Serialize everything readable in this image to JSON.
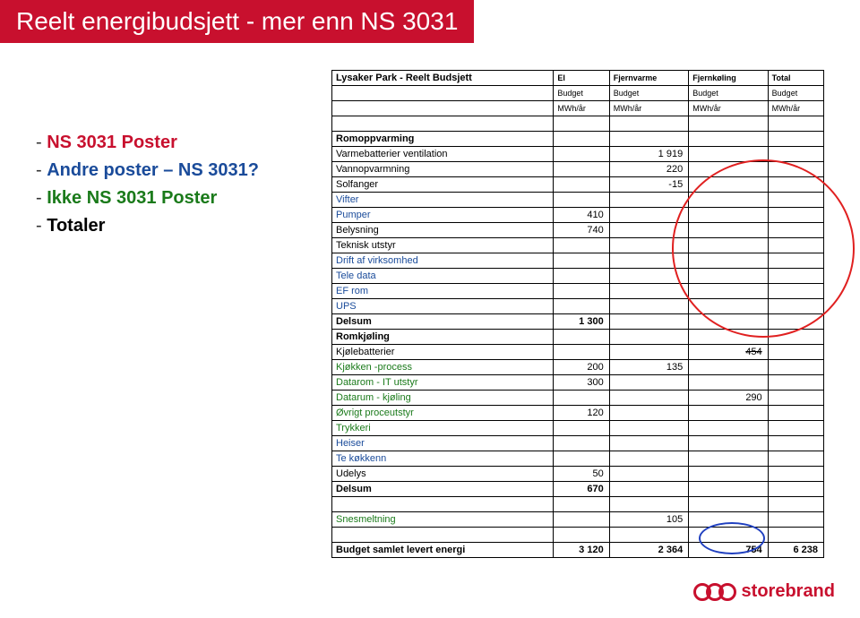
{
  "title": "Reelt energibudsjett - mer enn NS 3031",
  "bullets": [
    {
      "dash": "-",
      "text": "NS 3031 Poster",
      "cls": "b-red"
    },
    {
      "dash": "-",
      "text": "Andre poster – NS 3031?",
      "cls": "b-blue"
    },
    {
      "dash": "-",
      "text": "Ikke NS 3031 Poster",
      "cls": "b-green"
    },
    {
      "dash": "-",
      "text": "Totaler",
      "cls": "b-black"
    }
  ],
  "header": {
    "name": "Lysaker Park - Reelt Budsjett",
    "cols": [
      "El",
      "Fjernvarme",
      "Fjernkøling",
      "Total"
    ],
    "sub1": [
      "Budget",
      "Budget",
      "Budget",
      "Budget"
    ],
    "sub2": [
      "MWh/år",
      "MWh/år",
      "MWh/år",
      "MWh/år"
    ]
  },
  "rows": [
    {
      "label": "Romoppvarming",
      "v": [
        "",
        "",
        "",
        ""
      ],
      "b": true
    },
    {
      "label": "Varmebatterier ventilation",
      "v": [
        "",
        "1 919",
        "",
        ""
      ]
    },
    {
      "label": "Vannopvarmning",
      "v": [
        "",
        "220",
        "",
        ""
      ]
    },
    {
      "label": "Solfanger",
      "v": [
        "",
        "-15",
        "",
        ""
      ]
    },
    {
      "label": "Vifter",
      "v": [
        "",
        "",
        "",
        ""
      ],
      "blue": true
    },
    {
      "label": "Pumper",
      "v": [
        "410",
        "",
        "",
        ""
      ],
      "blue": true
    },
    {
      "label": "Belysning",
      "v": [
        "740",
        "",
        "",
        ""
      ]
    },
    {
      "label": "Teknisk utstyr",
      "v": [
        "",
        "",
        "",
        ""
      ]
    },
    {
      "label": "Drift af virksomhed",
      "v": [
        "",
        "",
        "",
        ""
      ],
      "blue": true
    },
    {
      "label": "Tele data",
      "v": [
        "",
        "",
        "",
        ""
      ],
      "blue": true
    },
    {
      "label": "EF rom",
      "v": [
        "",
        "",
        "",
        ""
      ],
      "blue": true
    },
    {
      "label": "UPS",
      "v": [
        "",
        "",
        "",
        ""
      ],
      "blue": true
    },
    {
      "label": "Delsum",
      "v": [
        "1 300",
        "",
        "",
        ""
      ],
      "b": true
    },
    {
      "label": "Romkjøling",
      "v": [
        "",
        "",
        "",
        ""
      ],
      "b": true
    },
    {
      "label": "Kjølebatterier",
      "v": [
        "",
        "",
        "454",
        ""
      ],
      "strike": true
    },
    {
      "label": "Kjøkken -process",
      "v": [
        "200",
        "135",
        "",
        ""
      ],
      "green": true
    },
    {
      "label": "Datarom - IT utstyr",
      "v": [
        "300",
        "",
        "",
        ""
      ],
      "green": true
    },
    {
      "label": "Datarum - kjøling",
      "v": [
        "",
        "",
        "290",
        ""
      ],
      "green": true
    },
    {
      "label": "Øvrigt proceutstyr",
      "v": [
        "120",
        "",
        "",
        ""
      ],
      "green": true
    },
    {
      "label": "Trykkeri",
      "v": [
        "",
        "",
        "",
        ""
      ],
      "green": true
    },
    {
      "label": "Heiser",
      "v": [
        "",
        "",
        "",
        ""
      ],
      "blue": true
    },
    {
      "label": "Te køkkenn",
      "v": [
        "",
        "",
        "",
        ""
      ],
      "blue": true
    },
    {
      "label": "Udelys",
      "v": [
        "50",
        "",
        "",
        ""
      ]
    },
    {
      "label": "Delsum",
      "v": [
        "670",
        "",
        "",
        ""
      ],
      "b": true
    },
    {
      "label": "",
      "v": [
        "",
        "",
        "",
        ""
      ],
      "empty": true
    },
    {
      "label": "Snesmeltning",
      "v": [
        "",
        "105",
        "",
        ""
      ],
      "green": true
    },
    {
      "label": "",
      "v": [
        "",
        "",
        "",
        ""
      ],
      "empty": true
    },
    {
      "label": "Budget samlet levert energi",
      "v": [
        "3 120",
        "2 364",
        "754",
        "6 238"
      ],
      "b": true
    }
  ],
  "logo": "storebrand"
}
